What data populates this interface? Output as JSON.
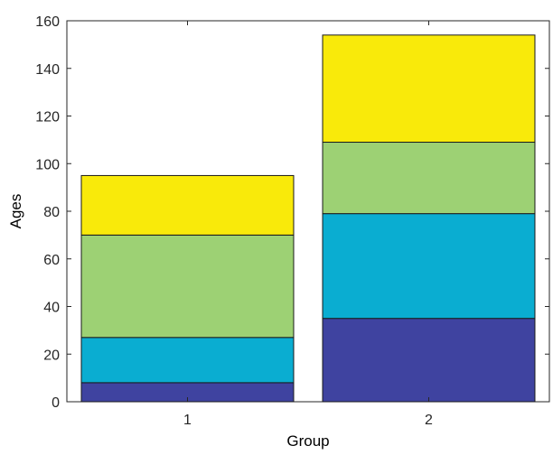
{
  "chart_data": {
    "type": "bar",
    "stacked": true,
    "title": "",
    "xlabel": "Group",
    "ylabel": "Ages",
    "categories": [
      "1",
      "2"
    ],
    "ylim": [
      0,
      160
    ],
    "yticks": [
      0,
      20,
      40,
      60,
      80,
      100,
      120,
      140,
      160
    ],
    "grid": false,
    "series": [
      {
        "values": [
          8,
          35
        ],
        "color": "#3f43a0"
      },
      {
        "values": [
          19,
          44
        ],
        "color": "#0aadd1"
      },
      {
        "values": [
          43,
          30
        ],
        "color": "#9dd174"
      },
      {
        "values": [
          25,
          45
        ],
        "color": "#f9ea0a"
      }
    ]
  }
}
